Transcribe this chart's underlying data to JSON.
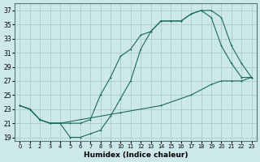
{
  "xlabel": "Humidex (Indice chaleur)",
  "ylabel": "",
  "xlim": [
    -0.5,
    23.5
  ],
  "ylim": [
    18.5,
    38
  ],
  "yticks": [
    19,
    21,
    23,
    25,
    27,
    29,
    31,
    33,
    35,
    37
  ],
  "xticks": [
    0,
    1,
    2,
    3,
    4,
    5,
    6,
    7,
    8,
    9,
    10,
    11,
    12,
    13,
    14,
    15,
    16,
    17,
    18,
    19,
    20,
    21,
    22,
    23
  ],
  "bg_color": "#cde8e8",
  "grid_color": "#aacccc",
  "line_color": "#1a6b5a",
  "line1_x": [
    0,
    1,
    2,
    3,
    4,
    5,
    6,
    7,
    8,
    9,
    10,
    11,
    12,
    13,
    14,
    15,
    16,
    17,
    18,
    19,
    20,
    21,
    22,
    23
  ],
  "line1_y": [
    23.5,
    23.0,
    21.5,
    21.0,
    21.0,
    21.0,
    21.0,
    21.5,
    25.0,
    27.5,
    30.5,
    31.5,
    33.5,
    34.0,
    35.5,
    35.5,
    35.5,
    36.5,
    37.0,
    37.0,
    36.0,
    32.0,
    29.5,
    27.5
  ],
  "line2_x": [
    0,
    1,
    2,
    3,
    4,
    5,
    6,
    7,
    8,
    9,
    10,
    11,
    12,
    13,
    14,
    15,
    16,
    17,
    18,
    19,
    20,
    21,
    22,
    23
  ],
  "line2_y": [
    23.5,
    23.0,
    21.5,
    21.0,
    21.0,
    19.0,
    19.0,
    19.5,
    20.0,
    22.0,
    24.5,
    27.0,
    31.5,
    34.0,
    35.5,
    35.5,
    35.5,
    36.5,
    37.0,
    36.0,
    32.0,
    29.5,
    27.5,
    27.5
  ],
  "line3_x": [
    0,
    1,
    2,
    3,
    4,
    10,
    14,
    17,
    19,
    20,
    21,
    22,
    23
  ],
  "line3_y": [
    23.5,
    23.0,
    21.5,
    21.0,
    21.0,
    22.5,
    23.5,
    25.0,
    26.5,
    27.0,
    27.0,
    27.0,
    27.5
  ]
}
